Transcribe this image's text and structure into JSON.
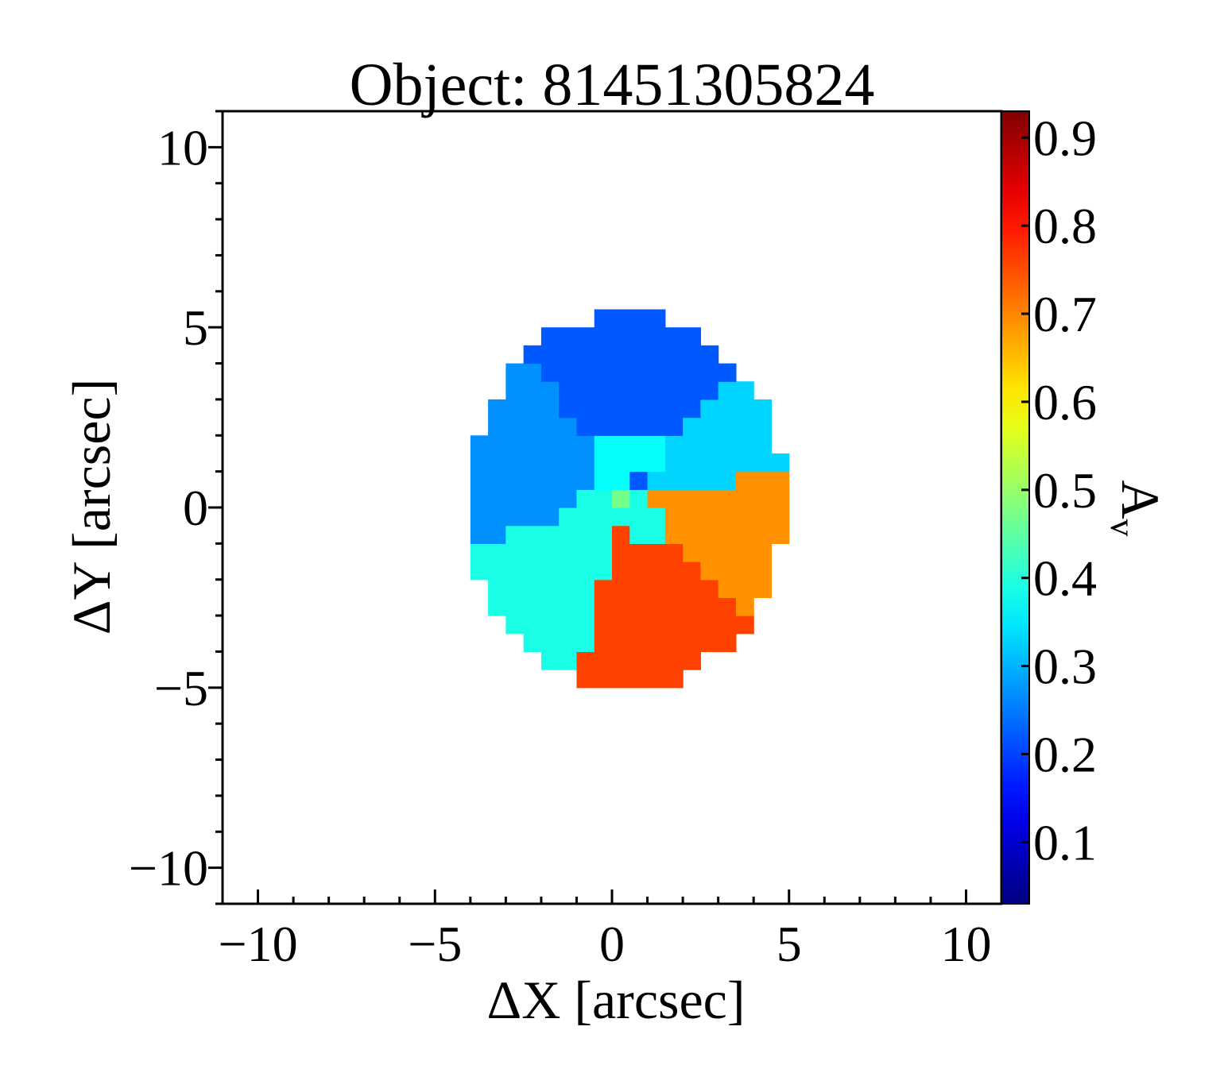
{
  "chart_data": {
    "type": "heatmap",
    "title": "Object: 81451305824",
    "xlabel": "ΔX [arcsec]",
    "ylabel": "ΔY [arcsec]",
    "colorbar_label": "A",
    "colorbar_label_subscript": "v",
    "xlim": [
      -11,
      11
    ],
    "ylim": [
      -11,
      11
    ],
    "xticks": [
      -10,
      -5,
      0,
      5,
      10
    ],
    "yticks": [
      -10,
      -5,
      0,
      5,
      10
    ],
    "xtick_labels": [
      "−10",
      "−5",
      "0",
      "5",
      "10"
    ],
    "ytick_labels": [
      "−10",
      "−5",
      "0",
      "5",
      "10"
    ],
    "colormap": "jet",
    "clim": [
      0.03,
      0.93
    ],
    "colorbar_ticks": [
      0.1,
      0.2,
      0.3,
      0.4,
      0.5,
      0.6,
      0.7,
      0.8,
      0.9
    ],
    "colorbar_tick_labels": [
      "0.1",
      "0.2",
      "0.3",
      "0.4",
      "0.5",
      "0.6",
      "0.7",
      "0.8",
      "0.9"
    ],
    "grid": false,
    "pixel_scale_arcsec": 0.5,
    "ellipse_map": {
      "center": [
        0.4,
        0.2
      ],
      "semi_axes": [
        4.5,
        5.2
      ]
    },
    "regions": [
      {
        "name": "top",
        "av": 0.22,
        "angle_from": 50,
        "angle_to": 125
      },
      {
        "name": "upper-left",
        "av": 0.27,
        "angle_from": 125,
        "angle_to": 195
      },
      {
        "name": "lower-left",
        "av": 0.39,
        "angle_from": 195,
        "angle_to": 255
      },
      {
        "name": "bottom",
        "av": 0.76,
        "angle_from": 255,
        "angle_to": 315
      },
      {
        "name": "lower-right",
        "av": 0.69,
        "angle_from": 315,
        "angle_to": 370
      },
      {
        "name": "upper-right",
        "av": 0.33,
        "angle_from": 10,
        "angle_to": 50
      }
    ],
    "center_patches": [
      {
        "x": -0.6,
        "y": 0.4,
        "w": 1.0,
        "h": 1.0,
        "av": 0.37
      },
      {
        "x": 0.3,
        "y": 0.8,
        "w": 1.0,
        "h": 1.0,
        "av": 0.37
      },
      {
        "x": -0.3,
        "y": 1.2,
        "w": 0.6,
        "h": 0.7,
        "av": 0.37
      },
      {
        "x": -0.9,
        "y": -0.4,
        "w": 1.8,
        "h": 0.8,
        "av": 0.39
      },
      {
        "x": 0.2,
        "y": -0.2,
        "w": 0.5,
        "h": 0.6,
        "av": 0.47
      },
      {
        "x": 0.4,
        "y": -1.1,
        "w": 0.9,
        "h": 1.3,
        "av": 0.39
      }
    ]
  }
}
